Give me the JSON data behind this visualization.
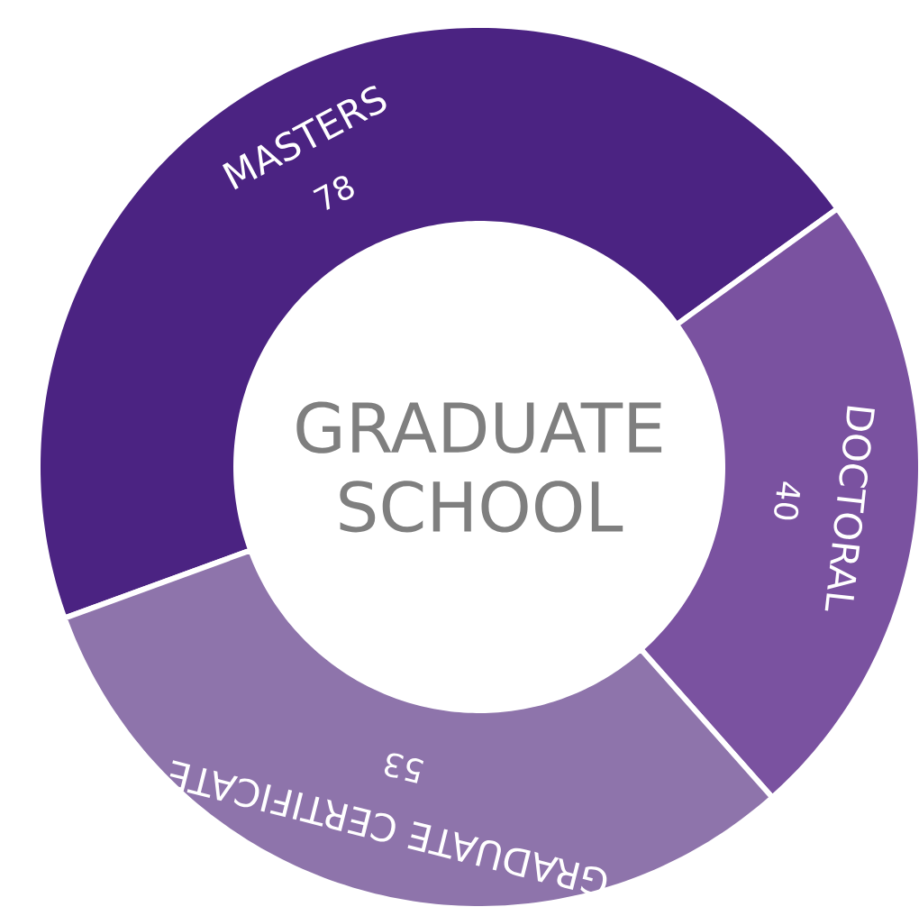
{
  "chart_data": {
    "type": "donut",
    "title": "GRADUATE SCHOOL",
    "categories": [
      "MASTERS",
      "DOCTORAL",
      "GRADUATE CERTIFICATE"
    ],
    "values": [
      78,
      40,
      53
    ],
    "colors": [
      "#4b2382",
      "#7a52a0",
      "#8e74ab"
    ],
    "data_labels": true
  }
}
